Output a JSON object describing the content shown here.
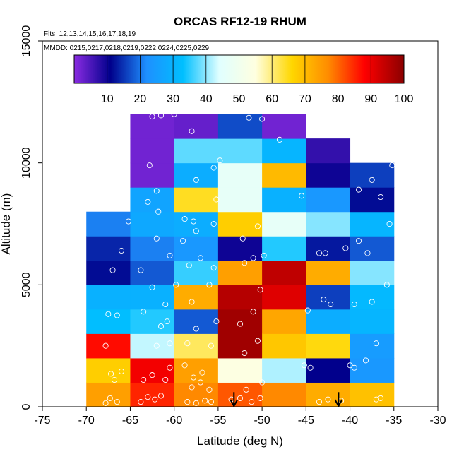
{
  "chart_data": {
    "type": "heatmap",
    "title": "ORCAS RF12-19 RHUM",
    "subtitle_flights": "Flts: 12,13,14,15,16,17,18,19",
    "subtitle_dates": "MMDD: 0215,0217,0218,0219,0222,0224,0225,0229",
    "xlabel": "Latitude (deg N)",
    "ylabel": "Altitude (m)",
    "xlim": [
      -75,
      -30
    ],
    "ylim": [
      0,
      15000
    ],
    "x_ticks": [
      -75,
      -70,
      -65,
      -60,
      -55,
      -50,
      -45,
      -40,
      -35,
      -30
    ],
    "y_ticks": [
      0,
      5000,
      10000,
      15000
    ],
    "colorbar": {
      "min": 0,
      "max": 100,
      "ticks": [
        10,
        20,
        30,
        40,
        50,
        60,
        70,
        80,
        90,
        100
      ],
      "stops": [
        "#8a2be2",
        "#00008b",
        "#1e90ff",
        "#00bfff",
        "#e0ffff",
        "#ffffe0",
        "#ffd700",
        "#ff8c00",
        "#ff0000",
        "#8b0000"
      ]
    },
    "bin_width_deg": 5,
    "bin_height_m": 1000,
    "columns": [
      {
        "lat_min": -70,
        "values": [
          75,
          68,
          88,
          33,
          30,
          12,
          14,
          21,
          null,
          null,
          null,
          null
        ]
      },
      {
        "lat_min": -65,
        "values": [
          86,
          90,
          43,
          35,
          30,
          18,
          21,
          28,
          27,
          2,
          2,
          2
        ]
      },
      {
        "lat_min": -60,
        "values": [
          78,
          75,
          62,
          18,
          73,
          36,
          24,
          29,
          65,
          29,
          38,
          3
        ]
      },
      {
        "lat_min": -55,
        "values": [
          82,
          55,
          98,
          98,
          96,
          75,
          10,
          68,
          47,
          47,
          38,
          17
        ]
      },
      {
        "lat_min": -50,
        "values": [
          78,
          42,
          69,
          74,
          92,
          95,
          35,
          47,
          30,
          71,
          31,
          2
        ]
      },
      {
        "lat_min": -45,
        "values": [
          73,
          11,
          66,
          29,
          16,
          73,
          13,
          40,
          24,
          10,
          7,
          null
        ]
      },
      {
        "lat_min": -40,
        "values": [
          70,
          24,
          25,
          31,
          32,
          40,
          18,
          31,
          12,
          16,
          null,
          null
        ]
      }
    ],
    "observation_points": [
      [
        -67.8,
        150
      ],
      [
        -67.3,
        350
      ],
      [
        -66.5,
        200
      ],
      [
        -66.8,
        1100
      ],
      [
        -67.2,
        1350
      ],
      [
        -66.0,
        1450
      ],
      [
        -67.8,
        2500
      ],
      [
        -67.5,
        3800
      ],
      [
        -66.5,
        3750
      ],
      [
        -67.0,
        5600
      ],
      [
        -66.0,
        6400
      ],
      [
        -65.2,
        7600
      ],
      [
        -63.8,
        200
      ],
      [
        -63.0,
        400
      ],
      [
        -62.2,
        300
      ],
      [
        -61.5,
        450
      ],
      [
        -63.5,
        1100
      ],
      [
        -62.5,
        1300
      ],
      [
        -61.0,
        1100
      ],
      [
        -60.5,
        1600
      ],
      [
        -62.0,
        2500
      ],
      [
        -60.5,
        2600
      ],
      [
        -61.5,
        3300
      ],
      [
        -60.8,
        3500
      ],
      [
        -63.5,
        3900
      ],
      [
        -62.5,
        4900
      ],
      [
        -61.0,
        4200
      ],
      [
        -59.8,
        5000
      ],
      [
        -63.8,
        5600
      ],
      [
        -60.5,
        6200
      ],
      [
        -62.0,
        6900
      ],
      [
        -61.8,
        8000
      ],
      [
        -63.0,
        8400
      ],
      [
        -62.0,
        8850
      ],
      [
        -62.8,
        9900
      ],
      [
        -61.5,
        11950
      ],
      [
        -62.5,
        11900
      ],
      [
        -60.0,
        12000
      ],
      [
        -58.5,
        200
      ],
      [
        -57.5,
        150
      ],
      [
        -56.5,
        250
      ],
      [
        -55.8,
        200
      ],
      [
        -58.0,
        800
      ],
      [
        -57.0,
        1000
      ],
      [
        -56.0,
        700
      ],
      [
        -58.8,
        1700
      ],
      [
        -57.8,
        1200
      ],
      [
        -56.8,
        1400
      ],
      [
        -58.5,
        2600
      ],
      [
        -55.8,
        2500
      ],
      [
        -57.5,
        3200
      ],
      [
        -55.2,
        3500
      ],
      [
        -58.0,
        4300
      ],
      [
        -56.0,
        5000
      ],
      [
        -58.3,
        5800
      ],
      [
        -57.0,
        6100
      ],
      [
        -55.5,
        5700
      ],
      [
        -59.0,
        6800
      ],
      [
        -57.5,
        7200
      ],
      [
        -55.5,
        7500
      ],
      [
        -58.8,
        7700
      ],
      [
        -57.8,
        7600
      ],
      [
        -55.2,
        8500
      ],
      [
        -57.5,
        9300
      ],
      [
        -55.5,
        9800
      ],
      [
        -54.8,
        10100
      ],
      [
        -58.0,
        11300
      ],
      [
        -53.5,
        300
      ],
      [
        -52.5,
        350
      ],
      [
        -51.2,
        200
      ],
      [
        -50.2,
        350
      ],
      [
        -51.8,
        700
      ],
      [
        -50.0,
        1000
      ],
      [
        -52.0,
        2200
      ],
      [
        -50.5,
        2700
      ],
      [
        -51.0,
        3900
      ],
      [
        -52.5,
        3400
      ],
      [
        -50.2,
        4800
      ],
      [
        -52.0,
        5900
      ],
      [
        -51.0,
        6100
      ],
      [
        -49.8,
        6200
      ],
      [
        -52.2,
        6900
      ],
      [
        -50.5,
        7400
      ],
      [
        -51.5,
        11850
      ],
      [
        -50.0,
        11800
      ],
      [
        -48.0,
        10950
      ],
      [
        -45.5,
        8650
      ],
      [
        -44.8,
        3950
      ],
      [
        -45.2,
        1700
      ],
      [
        -44.5,
        1600
      ],
      [
        -43.5,
        200
      ],
      [
        -42.5,
        300
      ],
      [
        -41.0,
        250
      ],
      [
        -43.0,
        4400
      ],
      [
        -42.2,
        4200
      ],
      [
        -43.5,
        6300
      ],
      [
        -42.8,
        6300
      ],
      [
        -40.5,
        6500
      ],
      [
        -40.0,
        1700
      ],
      [
        -39.5,
        1600
      ],
      [
        -38.2,
        1900
      ],
      [
        -37.0,
        2600
      ],
      [
        -37.0,
        300
      ],
      [
        -36.5,
        350
      ],
      [
        -39.0,
        6800
      ],
      [
        -38.0,
        6300
      ],
      [
        -39.0,
        8900
      ],
      [
        -37.5,
        9300
      ],
      [
        -36.5,
        8600
      ],
      [
        -35.5,
        7500
      ],
      [
        -35.8,
        5000
      ],
      [
        -37.5,
        4300
      ],
      [
        -39.5,
        4200
      ],
      [
        -35.2,
        9900
      ]
    ],
    "arrows": [
      {
        "lat": -53.2,
        "alt_top": 600,
        "alt_bottom": 0
      },
      {
        "lat": -41.3,
        "alt_top": 600,
        "alt_bottom": 0
      }
    ]
  }
}
